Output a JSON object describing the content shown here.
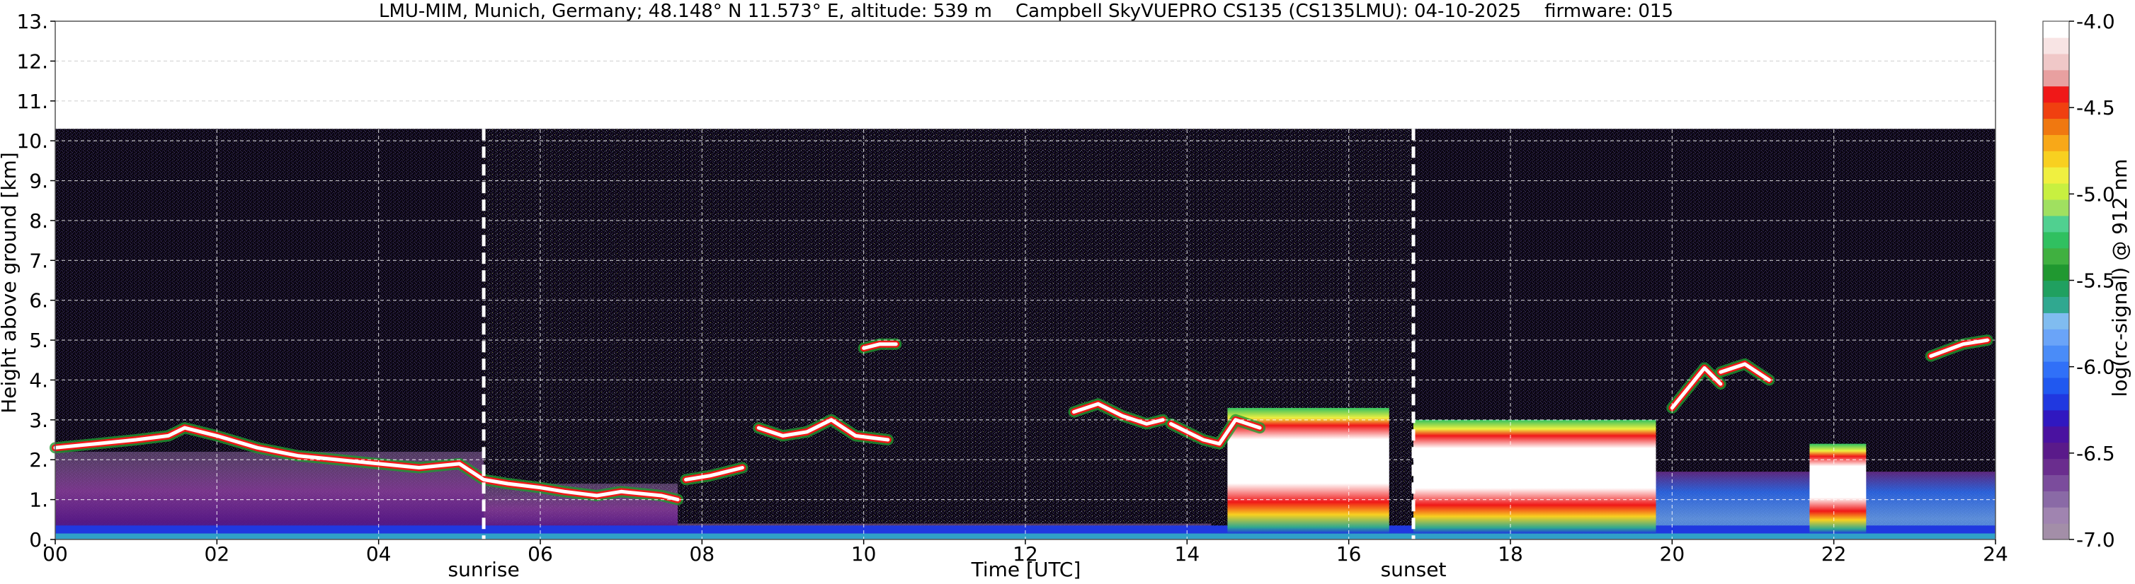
{
  "chart_data": {
    "type": "heatmap",
    "title": "LMU-MIM, Munich, Germany; 48.148° N 11.573° E, altitude: 539 m    Campbell SkyVUEPRO CS135 (CS135LMU): 04-10-2025    firmware: 015",
    "xlabel": "Time [UTC]",
    "ylabel": "Height above ground [km]",
    "colorbar_label": "log(rc-signal) @ 912 nm",
    "xlim": [
      0,
      24
    ],
    "ylim": [
      0,
      13
    ],
    "x_ticks": [
      0,
      2,
      4,
      6,
      8,
      10,
      12,
      14,
      16,
      18,
      20,
      22,
      24
    ],
    "x_tick_labels": [
      "00",
      "02",
      "04",
      "06",
      "08",
      "10",
      "12",
      "14",
      "16",
      "18",
      "20",
      "22",
      "24"
    ],
    "y_ticks": [
      0,
      1,
      2,
      3,
      4,
      5,
      6,
      7,
      8,
      9,
      10,
      11,
      12,
      13
    ],
    "y_tick_labels": [
      "0.",
      "1.",
      "2.",
      "3.",
      "4.",
      "5.",
      "6.",
      "7.",
      "8.",
      "9.",
      "10.",
      "11.",
      "12.",
      "13."
    ],
    "grid": true,
    "measurement_top_km": 10.3,
    "colorbar": {
      "range": [
        -7.0,
        -4.0
      ],
      "ticks": [
        -7.0,
        -6.5,
        -6.0,
        -5.5,
        -5.0,
        -4.5,
        -4.0
      ],
      "tick_labels": [
        "-7.0",
        "-6.5",
        "-6.0",
        "-5.5",
        "-5.0",
        "-4.5",
        "-4.0"
      ],
      "colors": [
        "#a38ea8",
        "#a084b0",
        "#8a6aa6",
        "#7b4c9c",
        "#6a2d8e",
        "#5a1a8a",
        "#4a12a0",
        "#3018c0",
        "#2038e0",
        "#2058f0",
        "#3070f8",
        "#4a8cf8",
        "#6aa4f8",
        "#80bcf0",
        "#30a890",
        "#20a060",
        "#209830",
        "#40b040",
        "#30c060",
        "#50d090",
        "#a0e060",
        "#c8f040",
        "#f0f040",
        "#f8d020",
        "#f8a818",
        "#f07810",
        "#f04010",
        "#f01818",
        "#e8a0a0",
        "#f0c8c8",
        "#f8e4e4",
        "#ffffff"
      ]
    },
    "events": [
      {
        "label": "sunrise",
        "x": 5.3
      },
      {
        "label": "sunset",
        "x": 16.8
      }
    ],
    "cloud_layers": [
      {
        "t": [
          0.0,
          0.5,
          1.0,
          1.4,
          1.6,
          2.0,
          2.5,
          3.0,
          3.5,
          4.0,
          4.5,
          5.0,
          5.3,
          5.6,
          6.0,
          6.3,
          6.7,
          7.0,
          7.5,
          7.7
        ],
        "h": [
          2.3,
          2.4,
          2.5,
          2.6,
          2.8,
          2.6,
          2.3,
          2.1,
          2.0,
          1.9,
          1.8,
          1.9,
          1.5,
          1.4,
          1.3,
          1.2,
          1.1,
          1.2,
          1.1,
          1.0
        ]
      },
      {
        "t": [
          7.8,
          8.1,
          8.5
        ],
        "h": [
          1.5,
          1.6,
          1.8
        ]
      },
      {
        "t": [
          8.7,
          9.0,
          9.3,
          9.6,
          9.9,
          10.3
        ],
        "h": [
          2.8,
          2.6,
          2.7,
          3.0,
          2.6,
          2.5
        ]
      },
      {
        "t": [
          10.0,
          10.2,
          10.4
        ],
        "h": [
          4.8,
          4.9,
          4.9
        ]
      },
      {
        "t": [
          12.6,
          12.9,
          13.2,
          13.5,
          13.7
        ],
        "h": [
          3.2,
          3.4,
          3.1,
          2.9,
          3.0
        ]
      },
      {
        "t": [
          13.8,
          14.0,
          14.2,
          14.4,
          14.6,
          14.9
        ],
        "h": [
          2.9,
          2.7,
          2.5,
          2.4,
          3.0,
          2.8
        ]
      },
      {
        "t": [
          20.0,
          20.2,
          20.4,
          20.6
        ],
        "h": [
          3.3,
          3.8,
          4.3,
          3.9
        ]
      },
      {
        "t": [
          20.6,
          20.9,
          21.2
        ],
        "h": [
          4.2,
          4.4,
          4.0
        ]
      },
      {
        "t": [
          23.2,
          23.6,
          23.9
        ],
        "h": [
          4.6,
          4.9,
          5.0
        ]
      }
    ],
    "dense_cloud_periods": [
      {
        "start": 14.5,
        "end": 16.5,
        "top_km": 3.3
      },
      {
        "start": 16.8,
        "end": 19.8,
        "top_km": 3.0
      },
      {
        "start": 21.7,
        "end": 22.4,
        "top_km": 2.4
      }
    ],
    "boundary_layer_aerosol": [
      {
        "start": 0.0,
        "end": 5.3,
        "top_km": 2.2
      },
      {
        "start": 5.3,
        "end": 7.7,
        "top_km": 1.4
      },
      {
        "start": 7.7,
        "end": 14.3,
        "top_km": 0.4
      },
      {
        "start": 19.8,
        "end": 24.0,
        "top_km": 1.7
      }
    ]
  }
}
